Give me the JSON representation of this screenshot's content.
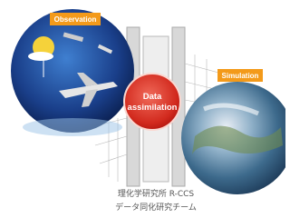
{
  "labels": {
    "observation": "Observation",
    "data_assimilation": [
      "Data",
      "assimilation"
    ],
    "simulation": "Simulation"
  },
  "credit": [
    "理化学研究所 R-CCS",
    "データ同化研究チーム"
  ]
}
